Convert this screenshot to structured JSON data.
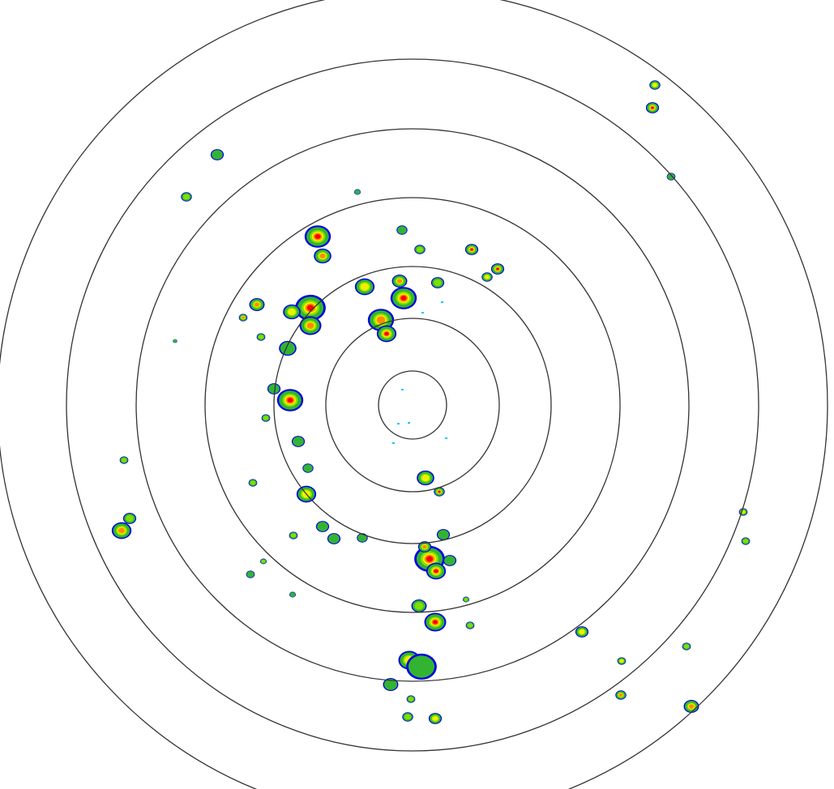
{
  "radar": {
    "range_ring_count": 7,
    "ring_color": "#333333",
    "background_color": "#ffffff",
    "reflectivity_palette": [
      "#00c8ff",
      "#0000e0",
      "#2e6b2e",
      "#32b432",
      "#7fe000",
      "#f0f000",
      "#ff8c00",
      "#ff0000"
    ]
  }
}
